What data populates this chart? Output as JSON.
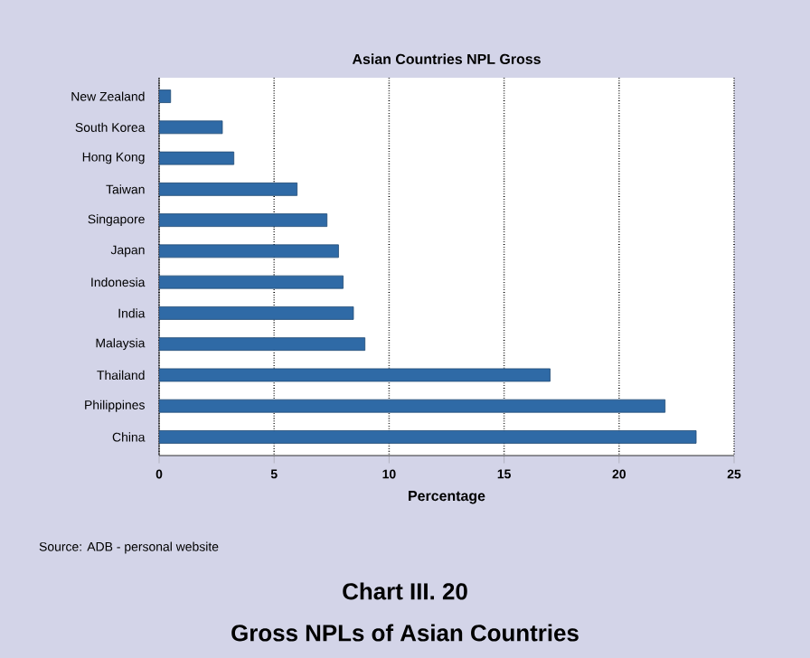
{
  "chart_data": {
    "type": "bar",
    "orientation": "horizontal",
    "title": "Asian Countries NPL Gross",
    "xlabel": "Percentage",
    "categories": [
      "New Zealand",
      "South Korea",
      "Hong Kong",
      "Taiwan",
      "Singapore",
      "Japan",
      "Indonesia",
      "India",
      "Malaysia",
      "Thailand",
      "Philippines",
      "China"
    ],
    "values": [
      0.5,
      2.75,
      3.25,
      6.0,
      7.3,
      7.8,
      8.0,
      8.45,
      8.95,
      17.0,
      22.0,
      23.35
    ],
    "color": "#2f6aa6",
    "xlim": [
      0,
      25
    ],
    "xticks": [
      0,
      5,
      10,
      15,
      20,
      25
    ],
    "grid": "x",
    "annotations": [
      "Source: ADB - personal website",
      "Chart III. 20",
      "Gross NPLs of Asian Countries"
    ]
  }
}
